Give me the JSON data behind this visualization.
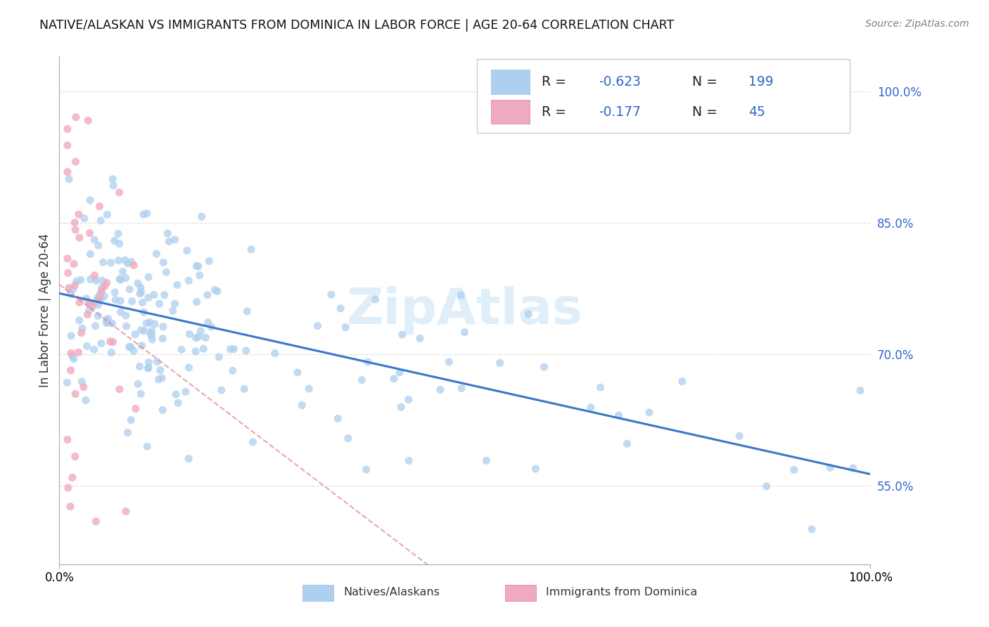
{
  "title": "NATIVE/ALASKAN VS IMMIGRANTS FROM DOMINICA IN LABOR FORCE | AGE 20-64 CORRELATION CHART",
  "source": "Source: ZipAtlas.com",
  "ylabel": "In Labor Force | Age 20-64",
  "xlim": [
    0.0,
    1.0
  ],
  "ylim": [
    0.46,
    1.04
  ],
  "x_tick_labels": [
    "0.0%",
    "100.0%"
  ],
  "y_ticks": [
    0.55,
    0.7,
    0.85,
    1.0
  ],
  "y_tick_labels": [
    "55.0%",
    "70.0%",
    "85.0%",
    "100.0%"
  ],
  "R_blue": -0.623,
  "N_blue": 199,
  "R_pink": -0.177,
  "N_pink": 45,
  "blue_color": "#aed0f0",
  "pink_color": "#f0aabf",
  "blue_line_color": "#3a78c9",
  "pink_line_color": "#e08090",
  "legend_entry1": "Natives/Alaskans",
  "legend_entry2": "Immigrants from Dominica",
  "text_color": "#333333",
  "num_color": "#3366cc",
  "grid_color": "#dddddd",
  "watermark_color": "#cce4f5"
}
